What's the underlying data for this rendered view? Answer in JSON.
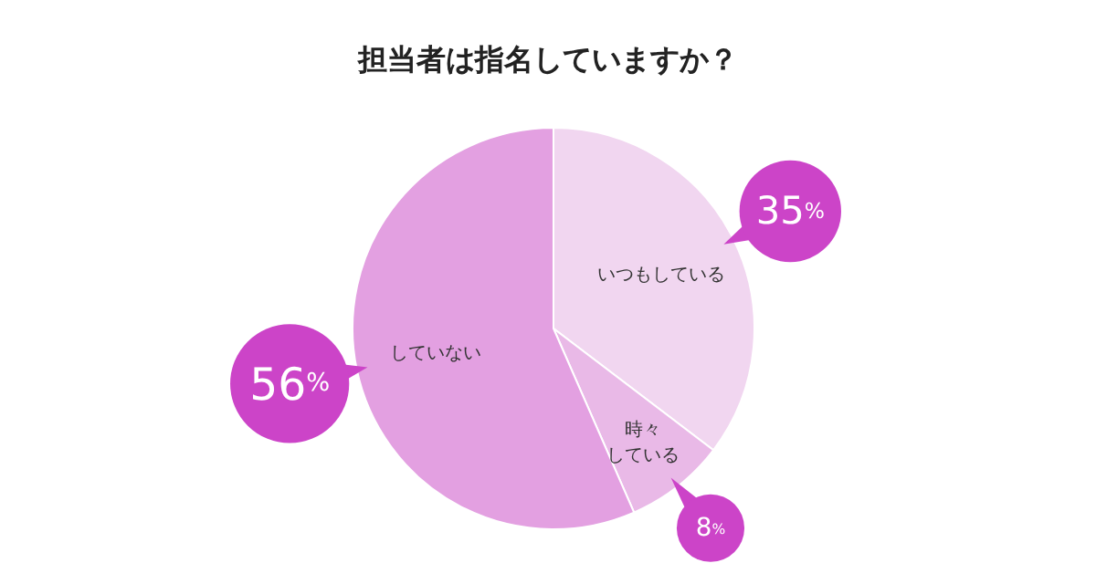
{
  "chart_data": {
    "type": "pie",
    "title": "担当者は指名していますか？",
    "categories": [
      "いつもしている",
      "時々している",
      "していない"
    ],
    "values": [
      35,
      8,
      56
    ],
    "colors": [
      "#f1d6f0",
      "#e9b9e7",
      "#e3a0e1"
    ],
    "value_labels": [
      "35%",
      "8%",
      "56%"
    ]
  }
}
